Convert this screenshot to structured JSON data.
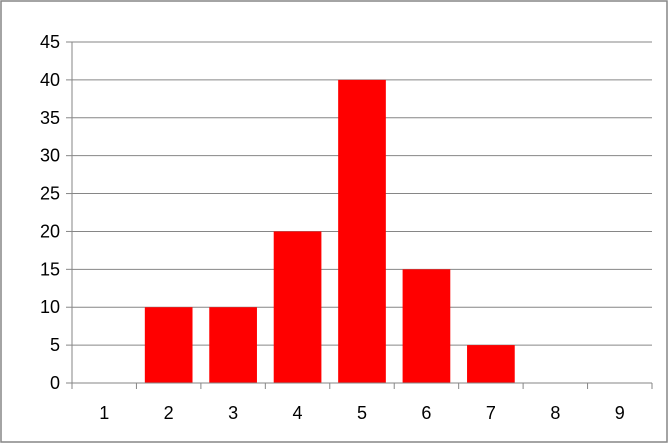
{
  "chart_data": {
    "type": "bar",
    "title": "",
    "xlabel": "",
    "ylabel": "",
    "categories": [
      "1",
      "2",
      "3",
      "4",
      "5",
      "6",
      "7",
      "8",
      "9"
    ],
    "values": [
      0,
      10,
      10,
      20,
      40,
      15,
      5,
      0,
      0
    ],
    "ylim": [
      0,
      45
    ],
    "yticks": [
      0,
      5,
      10,
      15,
      20,
      25,
      30,
      35,
      40,
      45
    ],
    "grid": true,
    "legend": "none",
    "colors": {
      "bar": "#ff0000",
      "grid": "#868686",
      "axis": "#868686",
      "border": "#868686",
      "text": "#000000"
    }
  }
}
